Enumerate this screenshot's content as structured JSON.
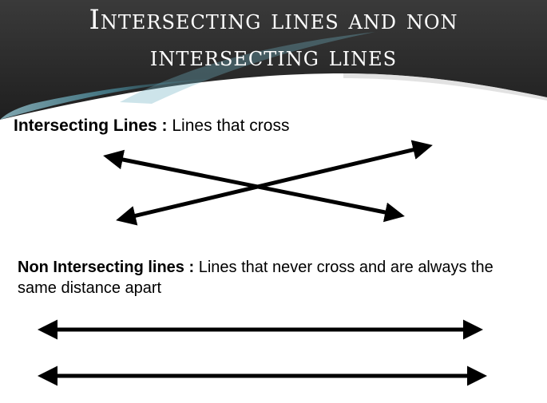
{
  "slide": {
    "title_line1": "Intersecting lines and non",
    "title_line2": "intersecting lines",
    "intersecting": {
      "term": "Intersecting Lines :",
      "definition": " Lines that cross"
    },
    "non_intersecting": {
      "term": "Non Intersecting lines :",
      "definition": " Lines that never cross and are always the same distance apart"
    }
  },
  "colors": {
    "header_dark": "#2b2b2b",
    "header_teal": "#5fa3b5",
    "lines": "#000000",
    "text": "#000000"
  }
}
